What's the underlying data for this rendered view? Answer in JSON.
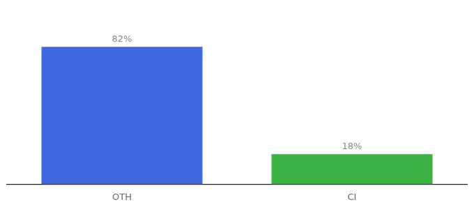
{
  "chart_data": {
    "type": "bar",
    "categories": [
      "OTH",
      "CI"
    ],
    "values": [
      82,
      18
    ],
    "value_labels": [
      "82%",
      "18%"
    ],
    "colors": [
      "#4169E1",
      "#3CB343"
    ],
    "ylim": [
      0,
      100
    ],
    "data_labels": true,
    "tick_labels": "x",
    "grid": false
  }
}
